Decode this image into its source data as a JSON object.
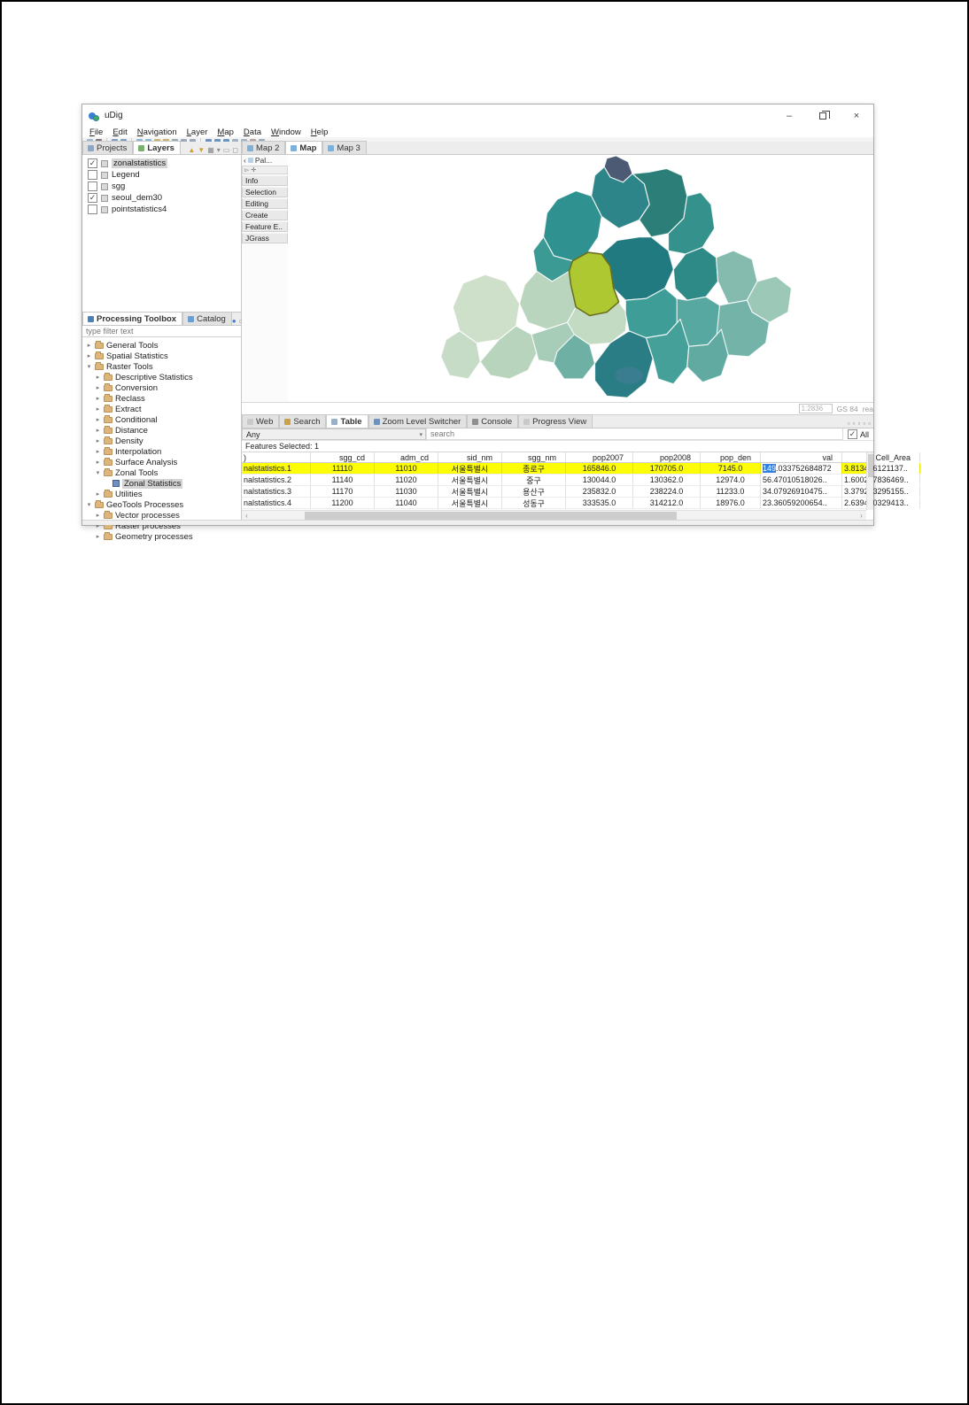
{
  "window": {
    "title": "uDig",
    "minimize": "–",
    "restore": "restore",
    "close": "×"
  },
  "menu": {
    "items": [
      "File",
      "Edit",
      "Navigation",
      "Layer",
      "Map",
      "Data",
      "Window",
      "Help"
    ]
  },
  "toolbar_icons": [
    "new-icon",
    "dropdown-caret-icon",
    "save-icon",
    "save-all-icon",
    "commit-icon",
    "revert-icon",
    "undo-icon",
    "redo-icon",
    "cut-icon",
    "copy-icon",
    "paste-icon",
    "zoom-icon",
    "pan-icon",
    "info-icon",
    "measure-icon",
    "select-icon",
    "delete-icon",
    "link-icon"
  ],
  "left": {
    "projects_tab": "Projects",
    "layers_tab": "Layers",
    "layers": [
      {
        "label": "zonalstatistics",
        "checked": true,
        "selected": true
      },
      {
        "label": "Legend",
        "checked": false,
        "selected": false
      },
      {
        "label": "sgg",
        "checked": false,
        "selected": false
      },
      {
        "label": "seoul_dem30",
        "checked": true,
        "selected": false
      },
      {
        "label": "pointstatistics4",
        "checked": false,
        "selected": false
      }
    ],
    "toolbox_tab": "Processing Toolbox",
    "catalog_tab": "Catalog",
    "filter_placeholder": "type filter text",
    "tree": [
      {
        "label": "General Tools",
        "level": 0,
        "state": "collapsed"
      },
      {
        "label": "Spatial Statistics",
        "level": 0,
        "state": "collapsed"
      },
      {
        "label": "Raster Tools",
        "level": 0,
        "state": "expanded"
      },
      {
        "label": "Descriptive Statistics",
        "level": 1,
        "state": "collapsed"
      },
      {
        "label": "Conversion",
        "level": 1,
        "state": "collapsed"
      },
      {
        "label": "Reclass",
        "level": 1,
        "state": "collapsed"
      },
      {
        "label": "Extract",
        "level": 1,
        "state": "collapsed"
      },
      {
        "label": "Conditional",
        "level": 1,
        "state": "collapsed"
      },
      {
        "label": "Distance",
        "level": 1,
        "state": "collapsed"
      },
      {
        "label": "Density",
        "level": 1,
        "state": "collapsed"
      },
      {
        "label": "Interpolation",
        "level": 1,
        "state": "collapsed"
      },
      {
        "label": "Surface Analysis",
        "level": 1,
        "state": "collapsed"
      },
      {
        "label": "Zonal Tools",
        "level": 1,
        "state": "expanded"
      },
      {
        "label": "Zonal Statistics",
        "level": 2,
        "state": "leaf",
        "selected": true
      },
      {
        "label": "Utilities",
        "level": 1,
        "state": "collapsed"
      },
      {
        "label": "GeoTools Processes",
        "level": 0,
        "state": "expanded"
      },
      {
        "label": "Vector processes",
        "level": 1,
        "state": "collapsed"
      },
      {
        "label": "Raster processes",
        "level": 1,
        "state": "collapsed"
      },
      {
        "label": "Geometry processes",
        "level": 1,
        "state": "collapsed"
      }
    ]
  },
  "editor": {
    "tabs": [
      {
        "label": "Map 2",
        "active": false
      },
      {
        "label": "Map",
        "active": true
      },
      {
        "label": "Map 3",
        "active": false
      }
    ]
  },
  "palette": {
    "header": "Pal...",
    "back_arrow": "‹",
    "items": [
      "Info",
      "Selection",
      "Editing",
      "Create",
      "Feature E..",
      "JGrass"
    ]
  },
  "map_status": {
    "scale": "1:2836",
    "crs": "GS 84",
    "trailing": "rea"
  },
  "map_colors": {
    "highlight": "#aec832",
    "highlight_border": "#6a6d1f",
    "dark_top": "#4c5a73",
    "dark_teal": "#217a7f",
    "teal": "#2f8e8b",
    "mid_teal": "#45a09b",
    "light_teal": "#84bbae",
    "pale_green": "#c8ddc4",
    "pale_green2": "#b2d2b8",
    "south_dark": "#2a7d85"
  },
  "bottom": {
    "tabs": [
      {
        "label": "Web",
        "active": false
      },
      {
        "label": "Search",
        "active": false
      },
      {
        "label": "Table",
        "active": true
      },
      {
        "label": "Zoom Level Switcher",
        "active": false
      },
      {
        "label": "Console",
        "active": false
      },
      {
        "label": "Progress View",
        "active": false
      }
    ],
    "header_icons": [
      "layout-icon",
      "refresh-icon",
      "view-menu-icon",
      "minimize-icon",
      "maximize-icon"
    ],
    "filter": {
      "dropdown_value": "Any",
      "search_placeholder": "search",
      "all_label": "All",
      "all_checked": true
    },
    "selected_info": "Features Selected: 1",
    "table": {
      "headers": [
        ")",
        "sgg_cd",
        "adm_cd",
        "sid_nm",
        "sgg_nm",
        "pop2007",
        "pop2008",
        "pop_den",
        "val",
        "Cell_Area"
      ],
      "rows": [
        {
          "highlighted": true,
          "cells": [
            "nalstatistics.1",
            "11110",
            "11010",
            "서울특별시",
            "종로구",
            "165846.0",
            "170705.0",
            "7145.0",
            "",
            "3.813406121137.."
          ],
          "val_selected": "149",
          "val_rest": ".033752684872"
        },
        {
          "highlighted": false,
          "cells": [
            "nalstatistics.2",
            "11140",
            "11020",
            "서울특별시",
            "중구",
            "130044.0",
            "130362.0",
            "12974.0",
            "56.47010518026..",
            "1.600267836469.."
          ]
        },
        {
          "highlighted": false,
          "cells": [
            "nalstatistics.3",
            "11170",
            "11030",
            "서울특별시",
            "용산구",
            "235832.0",
            "238224.0",
            "11233.0",
            "34.07926910475..",
            "3.379203295155.."
          ]
        },
        {
          "highlighted": false,
          "cells": [
            "nalstatistics.4",
            "11200",
            "11040",
            "서울특별시",
            "성동구",
            "333535.0",
            "314212.0",
            "18976.0",
            "23.36059200654..",
            "2.639420329413.."
          ]
        }
      ]
    }
  }
}
